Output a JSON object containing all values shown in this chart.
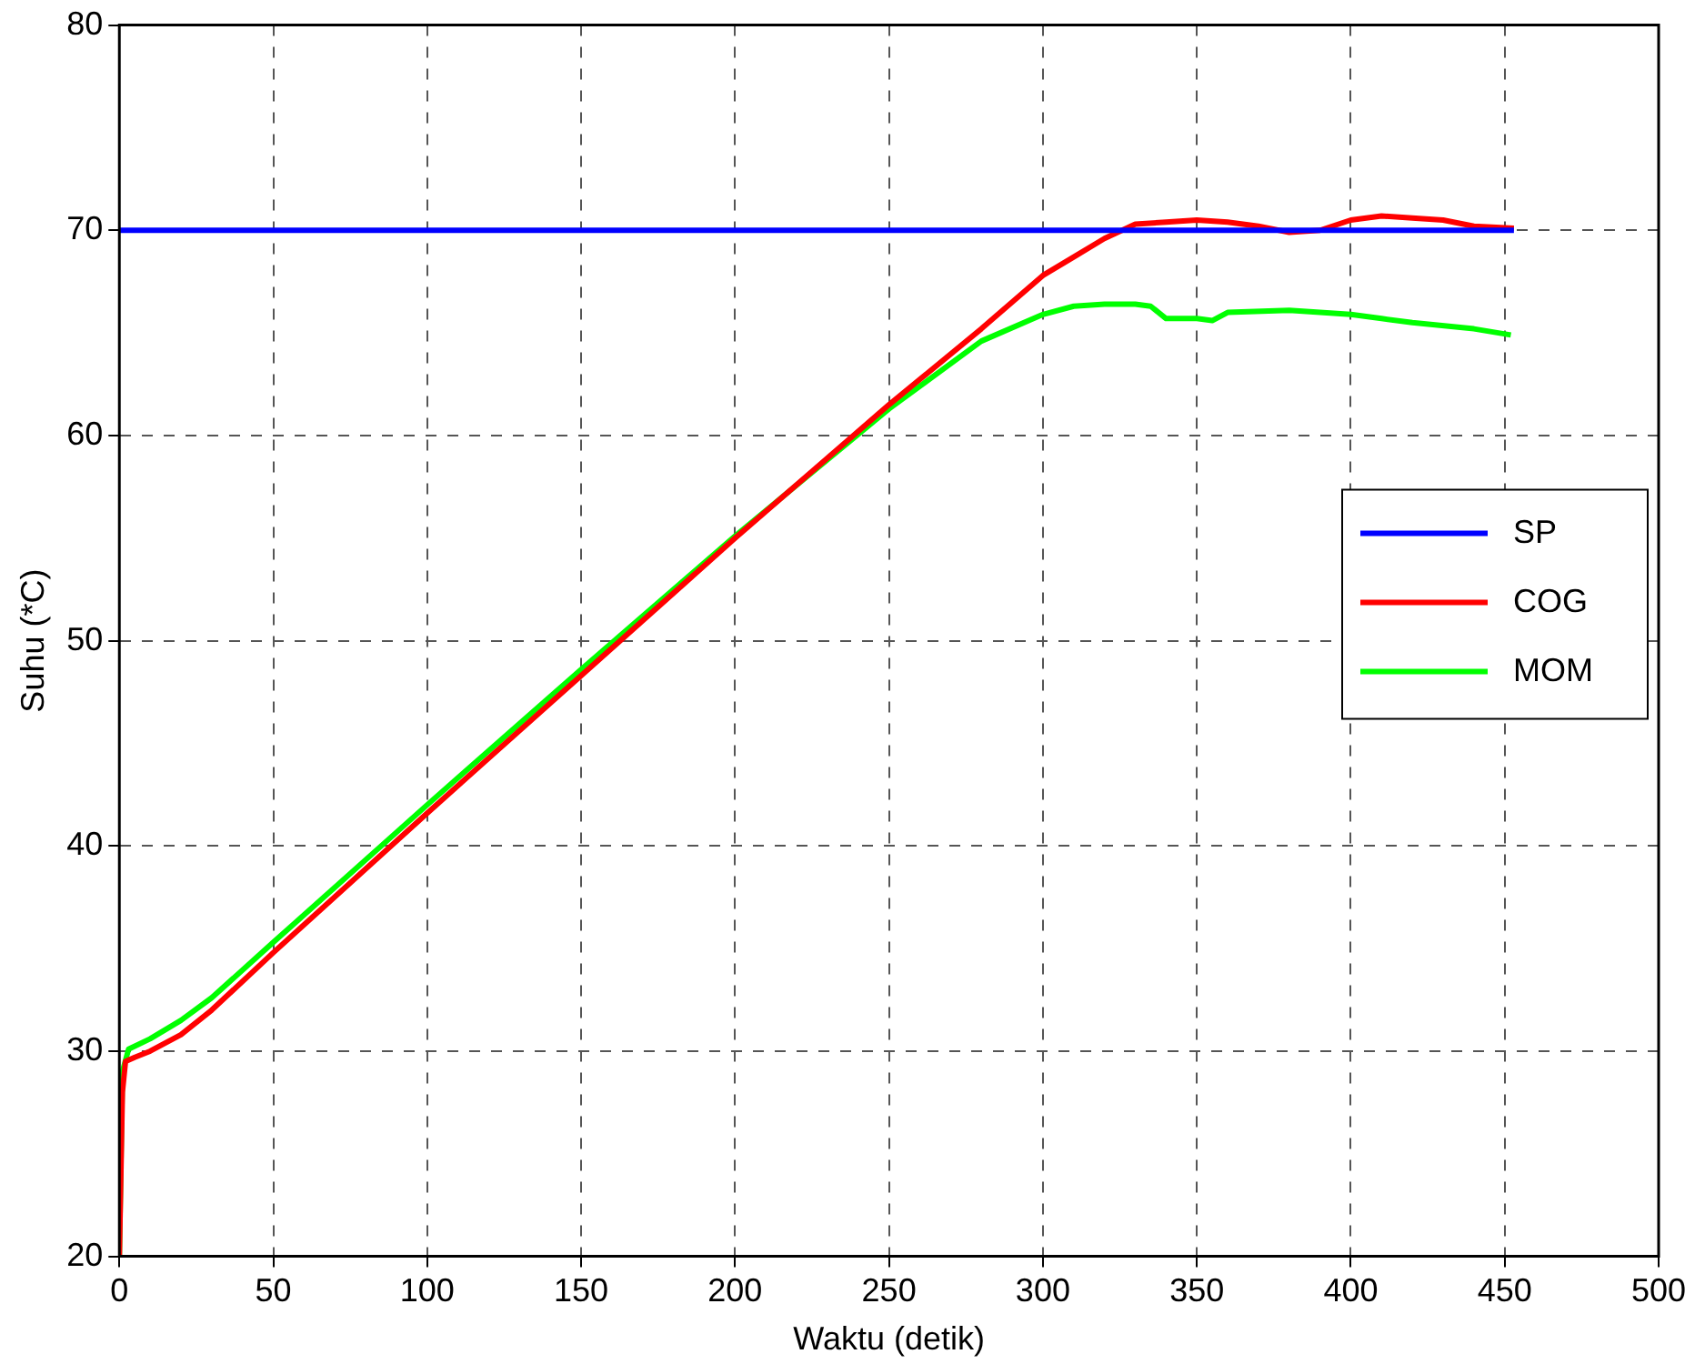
{
  "chart_data": {
    "type": "line",
    "xlabel": "Waktu (detik)",
    "ylabel": "Suhu (*C)",
    "xlim": [
      0,
      500
    ],
    "xticks": [
      0,
      50,
      100,
      150,
      200,
      250,
      300,
      350,
      400,
      450,
      500
    ],
    "ylim": [
      20,
      80
    ],
    "yticks": [
      20,
      30,
      40,
      50,
      60,
      70,
      80
    ],
    "grid": true,
    "legend": "right",
    "marker": "none",
    "line_style": "solid",
    "series": [
      {
        "name": "SP",
        "color": "#0000ff",
        "x": [
          0,
          453
        ],
        "values": [
          70,
          70
        ]
      },
      {
        "name": "COG",
        "color": "#ff0000",
        "x": [
          0,
          1,
          2,
          5,
          10,
          20,
          30,
          50,
          100,
          150,
          200,
          250,
          280,
          300,
          310,
          320,
          330,
          340,
          350,
          360,
          370,
          380,
          390,
          400,
          410,
          420,
          430,
          440,
          453
        ],
        "values": [
          20,
          28,
          29.5,
          29.7,
          30,
          30.8,
          32,
          34.8,
          41.6,
          48.3,
          55,
          61.5,
          65.2,
          67.8,
          68.7,
          69.6,
          70.3,
          70.4,
          70.5,
          70.4,
          70.2,
          69.9,
          70,
          70.5,
          70.7,
          70.6,
          70.5,
          70.2,
          70.1
        ]
      },
      {
        "name": "MOM",
        "color": "#00ff00",
        "x": [
          0,
          1,
          3,
          10,
          20,
          30,
          50,
          100,
          150,
          200,
          250,
          280,
          300,
          310,
          320,
          330,
          335,
          340,
          350,
          355,
          360,
          380,
          400,
          410,
          420,
          440,
          452
        ],
        "values": [
          20,
          29,
          30.1,
          30.6,
          31.5,
          32.6,
          35.3,
          42,
          48.6,
          55.1,
          61.3,
          64.6,
          65.9,
          66.3,
          66.4,
          66.4,
          66.3,
          65.7,
          65.7,
          65.6,
          66,
          66.1,
          65.9,
          65.7,
          65.5,
          65.2,
          64.9
        ]
      }
    ]
  }
}
